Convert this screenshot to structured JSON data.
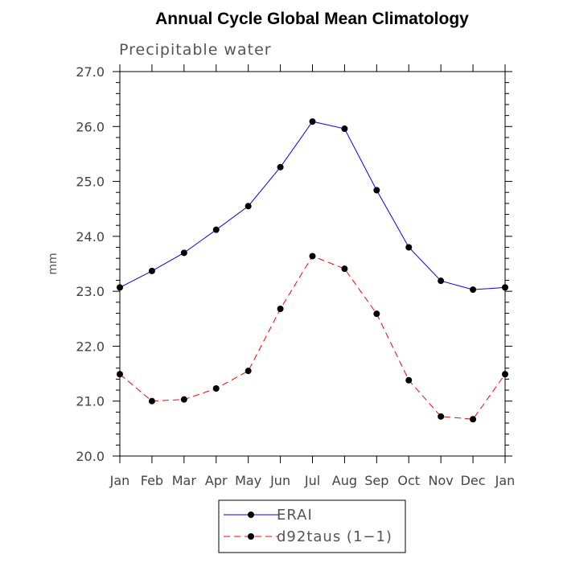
{
  "chart_data": {
    "type": "line",
    "title": "Annual Cycle Global Mean Climatology",
    "subtitle": "Precipitable water",
    "xlabel": "",
    "ylabel": "mm",
    "categories": [
      "Jan",
      "Feb",
      "Mar",
      "Apr",
      "May",
      "Jun",
      "Jul",
      "Aug",
      "Sep",
      "Oct",
      "Nov",
      "Dec",
      "Jan"
    ],
    "ylim": [
      20.0,
      27.0
    ],
    "yticks": [
      20.0,
      21.0,
      22.0,
      23.0,
      24.0,
      25.0,
      26.0,
      27.0
    ],
    "ytick_labels": [
      "20.0",
      "21.0",
      "22.0",
      "23.0",
      "24.0",
      "25.0",
      "26.0",
      "27.0"
    ],
    "grid": false,
    "legend_position": "bottom-center",
    "series": [
      {
        "name": "ERAI",
        "color": "#0000ff",
        "line_style": "solid",
        "marker_color": "#000000",
        "values": [
          23.07,
          23.37,
          23.7,
          24.12,
          24.55,
          25.26,
          26.09,
          25.96,
          24.84,
          23.8,
          23.19,
          23.03,
          23.07
        ]
      },
      {
        "name": "d92taus (1−1)",
        "color": "#ff0000",
        "line_style": "dashed",
        "marker_color": "#000000",
        "values": [
          21.49,
          21.0,
          21.03,
          21.23,
          21.55,
          22.68,
          23.64,
          23.41,
          22.59,
          21.38,
          20.72,
          20.67,
          21.49
        ]
      }
    ]
  }
}
